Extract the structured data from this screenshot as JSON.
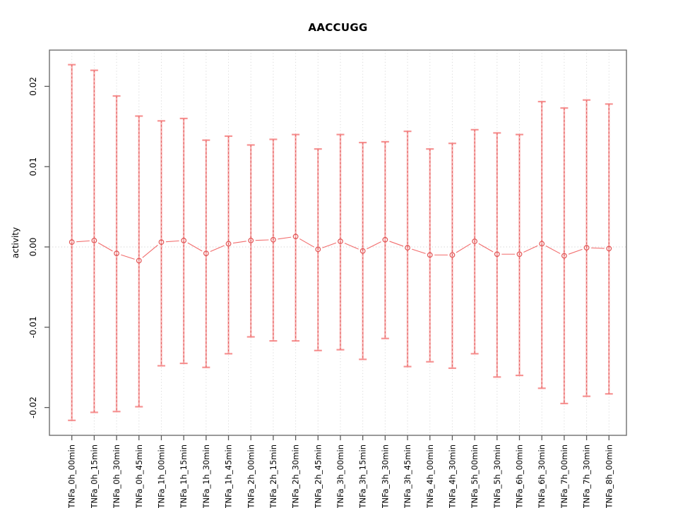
{
  "title": "AACCUGG",
  "chart_data": {
    "type": "line",
    "title": "AACCUGG",
    "xlabel": "",
    "ylabel": "activity",
    "legend": "none",
    "grid": "vertical dotted gridline at every category; dotted horizontal line at y=0",
    "marker": "open-circle with vertical error bars capped at both ends",
    "ylim": [
      -0.0235,
      0.0245
    ],
    "ytick_values": [
      -0.02,
      -0.01,
      0.0,
      0.01,
      0.02
    ],
    "ytick_labels": [
      "-0.02",
      "-0.01",
      "0.00",
      "0.01",
      "0.02"
    ],
    "categories": [
      "TNFa_0h_00min",
      "TNFa_0h_15min",
      "TNFa_0h_30min",
      "TNFa_0h_45min",
      "TNFa_1h_00min",
      "TNFa_1h_15min",
      "TNFa_1h_30min",
      "TNFa_1h_45min",
      "TNFa_2h_00min",
      "TNFa_2h_15min",
      "TNFa_2h_30min",
      "TNFa_2h_45min",
      "TNFa_3h_00min",
      "TNFa_3h_15min",
      "TNFa_3h_30min",
      "TNFa_3h_45min",
      "TNFa_4h_00min",
      "TNFa_4h_30min",
      "TNFa_5h_00min",
      "TNFa_5h_30min",
      "TNFa_6h_00min",
      "TNFa_6h_30min",
      "TNFa_7h_00min",
      "TNFa_7h_30min",
      "TNFa_8h_00min"
    ],
    "series": [
      {
        "name": "activity",
        "values": [
          0.0006,
          0.0008,
          -0.0008,
          -0.0017,
          0.0006,
          0.0008,
          -0.0008,
          0.0004,
          0.0008,
          0.0009,
          0.0013,
          -0.0003,
          0.0007,
          -0.0005,
          0.0009,
          -0.0001,
          -0.001,
          -0.001,
          0.0007,
          -0.0009,
          -0.0009,
          0.0004,
          -0.0011,
          -0.0001,
          -0.0002
        ],
        "upper": [
          0.0227,
          0.022,
          0.0188,
          0.0163,
          0.0157,
          0.016,
          0.0133,
          0.0138,
          0.0127,
          0.0134,
          0.014,
          0.0122,
          0.014,
          0.013,
          0.0131,
          0.0144,
          0.0122,
          0.0129,
          0.0146,
          0.0142,
          0.014,
          0.0181,
          0.0173,
          0.0183,
          0.0178
        ],
        "lower": [
          -0.0216,
          -0.0206,
          -0.0205,
          -0.0199,
          -0.0148,
          -0.0145,
          -0.015,
          -0.0133,
          -0.0112,
          -0.0117,
          -0.0117,
          -0.0129,
          -0.0128,
          -0.014,
          -0.0114,
          -0.0149,
          -0.0143,
          -0.0151,
          -0.0133,
          -0.0162,
          -0.016,
          -0.0176,
          -0.0195,
          -0.0186,
          -0.0183
        ]
      }
    ],
    "colors": {
      "point_stroke": "#e25555",
      "segment_line": "#f26c6c",
      "errorbar_fill": "#f47878",
      "errorbar_dash": "#e05252",
      "grid": "#d9d9d9",
      "zero_line": "#cfcfcf",
      "box": "#6e6e6e",
      "tick": "#5a5a5a",
      "text": "#000000"
    }
  }
}
